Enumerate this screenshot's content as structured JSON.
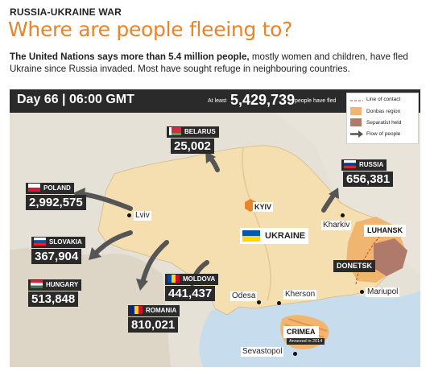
{
  "header": {
    "kicker": "RUSSIA-UKRAINE WAR",
    "headline": "Where are people fleeing to?",
    "intro_bold": "The United Nations says more than 5.4 million people,",
    "intro_rest": " mostly women and children, have fled Ukraine since Russia invaded. Most have sought refuge in neighbouring countries."
  },
  "topbar": {
    "day": "Day 66 | 06:00 GMT",
    "at_least": "At least",
    "total": "5,429,739",
    "fled": "people have fled"
  },
  "legend": {
    "line_of_contact": "Line of contact",
    "donbas": "Donbas region",
    "separatist": "Separatist held",
    "flow": "Flow of people"
  },
  "colors": {
    "ukraine_fill": "#f5dfb0",
    "donbas": "#f0b66f",
    "separatist": "#b07a6a",
    "sea": "#c7dcec",
    "arrow": "#555555",
    "accent": "#e8842a"
  },
  "countries": {
    "belarus": {
      "name": "BELARUS",
      "value": "25,002"
    },
    "russia": {
      "name": "RUSSIA",
      "value": "656,381"
    },
    "poland": {
      "name": "POLAND",
      "value": "2,992,575"
    },
    "slovakia": {
      "name": "SLOVAKIA",
      "value": "367,904"
    },
    "hungary": {
      "name": "HUNGARY",
      "value": "513,848"
    },
    "moldova": {
      "name": "MOLDOVA",
      "value": "441,437"
    },
    "romania": {
      "name": "ROMANIA",
      "value": "810,021"
    }
  },
  "cities": {
    "kyiv": "KYIV",
    "lviv": "Lviv",
    "kharkiv": "Kharkiv",
    "odesa": "Odesa",
    "kherson": "Kherson",
    "mariupol": "Mariupol",
    "sevastopol": "Sevastopol"
  },
  "regions": {
    "ukraine": "UKRAINE",
    "luhansk": "LUHANSK",
    "donetsk": "DONETSK",
    "crimea": "CRIMEA",
    "crimea_note": "Annexed in 2014"
  }
}
